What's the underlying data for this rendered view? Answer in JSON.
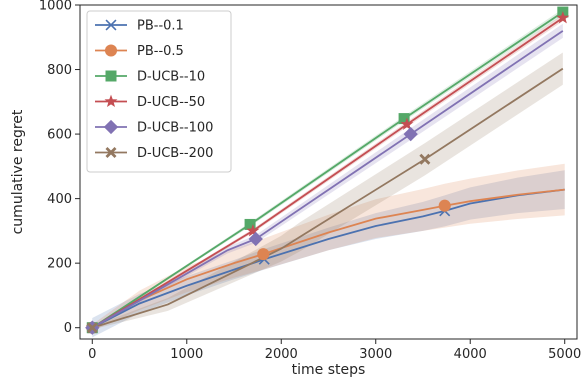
{
  "chart_data": {
    "type": "line",
    "xlabel": "time steps",
    "ylabel": "cumulative regret",
    "xlim": [
      -130,
      5130
    ],
    "ylim": [
      -35,
      1000
    ],
    "xticks": [
      0,
      1000,
      2000,
      3000,
      4000,
      5000
    ],
    "yticks": [
      0,
      200,
      400,
      600,
      800,
      1000
    ],
    "grid": false,
    "legend_position": "top-left",
    "series": [
      {
        "name": "PB--0.1",
        "color": "#4c72b0",
        "marker": "x",
        "x": [
          0,
          500,
          1000,
          1500,
          1820,
          2500,
          3000,
          3500,
          3730,
          4000,
          4500,
          5000
        ],
        "y": [
          0,
          75,
          130,
          180,
          212,
          275,
          315,
          345,
          362,
          385,
          410,
          428
        ],
        "band": [
          30,
          30,
          30,
          30,
          32,
          35,
          40,
          45,
          48,
          50,
          55,
          60
        ],
        "marker_x": [
          0,
          1820,
          3730
        ]
      },
      {
        "name": "PB--0.5",
        "color": "#dd8452",
        "marker": "o",
        "x": [
          0,
          500,
          1000,
          1500,
          1810,
          2500,
          3000,
          3500,
          3730,
          4000,
          4500,
          5000
        ],
        "y": [
          0,
          85,
          150,
          200,
          228,
          295,
          338,
          365,
          378,
          392,
          412,
          428
        ],
        "band": [
          10,
          30,
          40,
          45,
          48,
          55,
          60,
          65,
          68,
          70,
          75,
          80
        ],
        "marker_x": [
          0,
          1810,
          3730
        ]
      },
      {
        "name": "D-UCB--10",
        "color": "#55a868",
        "marker": "s",
        "x": [
          0,
          1670,
          3300,
          4980
        ],
        "y": [
          0,
          320,
          648,
          978
        ],
        "band": [
          2,
          6,
          8,
          10
        ],
        "marker_x": [
          0,
          1670,
          3300,
          4980
        ]
      },
      {
        "name": "D-UCB--50",
        "color": "#c44e52",
        "marker": "*",
        "x": [
          0,
          1700,
          3330,
          4980
        ],
        "y": [
          0,
          300,
          630,
          960
        ],
        "band": [
          2,
          6,
          8,
          10
        ],
        "marker_x": [
          0,
          1700,
          3330,
          4980
        ]
      },
      {
        "name": "D-UCB--100",
        "color": "#8172b3",
        "marker": "D",
        "x": [
          0,
          1430,
          1730,
          3370,
          4980
        ],
        "y": [
          0,
          240,
          275,
          600,
          920
        ],
        "band": [
          5,
          10,
          12,
          18,
          22
        ],
        "marker_x": [
          0,
          1730,
          3370
        ]
      },
      {
        "name": "D-UCB--200",
        "color": "#937860",
        "marker": "X",
        "x": [
          0,
          800,
          2000,
          2200,
          3520,
          4980
        ],
        "y": [
          0,
          72,
          245,
          282,
          522,
          803
        ],
        "band": [
          5,
          20,
          40,
          45,
          50,
          50
        ],
        "marker_x": [
          0,
          3520
        ]
      }
    ]
  }
}
